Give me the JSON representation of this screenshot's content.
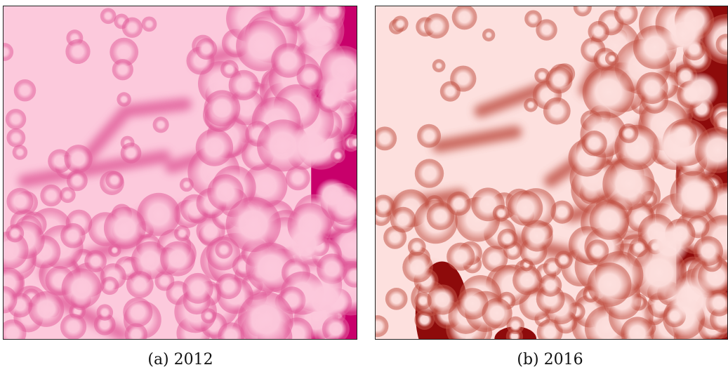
{
  "figures": [
    {
      "caption": "(a) 2012",
      "colors": {
        "light": "#fcc9dc",
        "mid": "#e2609c",
        "dark": "#c8006b"
      }
    },
    {
      "caption": "(b) 2016",
      "colors": {
        "light": "#fde0de",
        "mid": "#c25548",
        "dark": "#8e0b0b"
      }
    }
  ]
}
